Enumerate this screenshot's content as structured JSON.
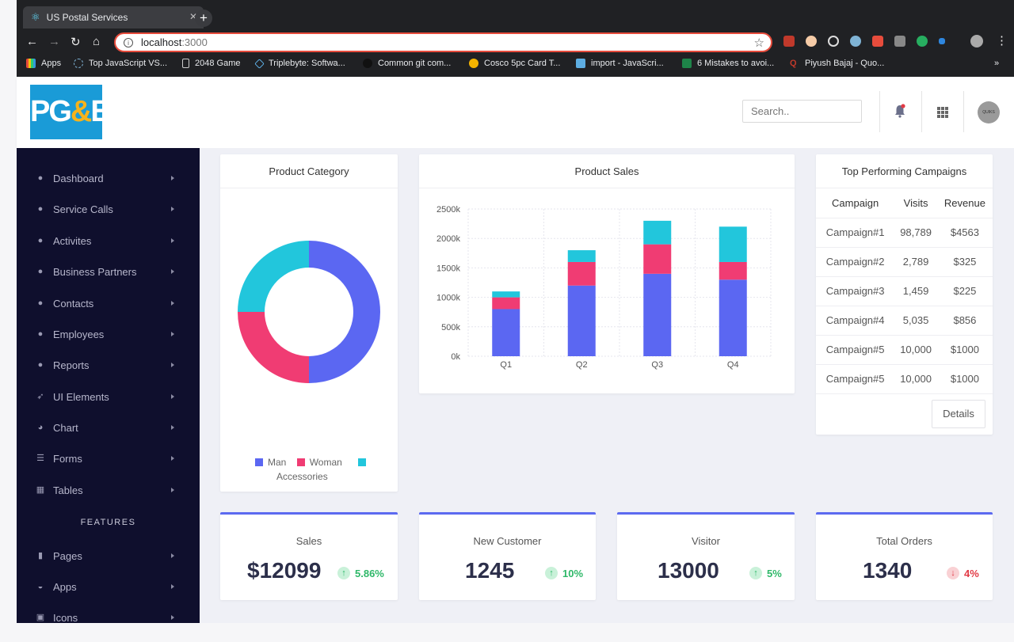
{
  "browser": {
    "tab_title": "US Postal Services",
    "url_host": "localhost",
    "url_port": ":3000",
    "bookmarks": [
      "Apps",
      "Top JavaScript VS...",
      "2048 Game",
      "Triplebyte: Softwa...",
      "Common git com...",
      "Cosco 5pc Card T...",
      "import - JavaScri...",
      "6 Mistakes to avoi...",
      "Piyush Bajaj - Quo..."
    ],
    "more": "»"
  },
  "header": {
    "logo_text_a": "PG",
    "logo_amp": "&",
    "logo_text_b": "E",
    "search_placeholder": "Search..",
    "avatar_text": "QUIKS"
  },
  "sidebar": {
    "items": [
      {
        "label": "Dashboard",
        "icon": "user-circle-icon"
      },
      {
        "label": "Service Calls",
        "icon": "user-circle-icon"
      },
      {
        "label": "Activites",
        "icon": "user-circle-icon"
      },
      {
        "label": "Business Partners",
        "icon": "user-circle-icon"
      },
      {
        "label": "Contacts",
        "icon": "user-circle-icon"
      },
      {
        "label": "Employees",
        "icon": "user-circle-icon"
      },
      {
        "label": "Reports",
        "icon": "user-circle-icon"
      },
      {
        "label": "UI Elements",
        "icon": "rocket-icon"
      },
      {
        "label": "Chart",
        "icon": "pie-chart-icon"
      },
      {
        "label": "Forms",
        "icon": "form-icon"
      },
      {
        "label": "Tables",
        "icon": "table-icon"
      }
    ],
    "section_title": "FEATURES",
    "features": [
      {
        "label": "Pages",
        "icon": "file-icon"
      },
      {
        "label": "Apps",
        "icon": "inbox-icon"
      },
      {
        "label": "Icons",
        "icon": "layout-icon"
      }
    ]
  },
  "product_category": {
    "title": "Product Category",
    "legend": [
      {
        "label": "Man",
        "color": "#5b67f2"
      },
      {
        "label": "Woman",
        "color": "#f03c73"
      },
      {
        "label": "Accessories",
        "color": "#22c6dc"
      }
    ]
  },
  "product_sales": {
    "title": "Product Sales"
  },
  "campaigns": {
    "title": "Top Performing Campaigns",
    "columns": [
      "Campaign",
      "Visits",
      "Revenue"
    ],
    "rows": [
      [
        "Campaign#1",
        "98,789",
        "$4563"
      ],
      [
        "Campaign#2",
        "2,789",
        "$325"
      ],
      [
        "Campaign#3",
        "1,459",
        "$225"
      ],
      [
        "Campaign#4",
        "5,035",
        "$856"
      ],
      [
        "Campaign#5",
        "10,000",
        "$1000"
      ],
      [
        "Campaign#5",
        "10,000",
        "$1000"
      ]
    ],
    "details_label": "Details"
  },
  "stats": [
    {
      "title": "Sales",
      "value": "$12099",
      "change": "5.86%",
      "direction": "up"
    },
    {
      "title": "New Customer",
      "value": "1245",
      "change": "10%",
      "direction": "up"
    },
    {
      "title": "Visitor",
      "value": "13000",
      "change": "5%",
      "direction": "up"
    },
    {
      "title": "Total Orders",
      "value": "1340",
      "change": "4%",
      "direction": "down"
    }
  ],
  "chart_data": [
    {
      "type": "pie",
      "title": "Product Category",
      "categories": [
        "Man",
        "Woman",
        "Accessories"
      ],
      "values": [
        50,
        25,
        25
      ],
      "colors": [
        "#5b67f2",
        "#f03c73",
        "#22c6dc"
      ],
      "donut": true,
      "legend": "bottom"
    },
    {
      "type": "bar",
      "stacked": true,
      "title": "Product Sales",
      "categories": [
        "Q1",
        "Q2",
        "Q3",
        "Q4"
      ],
      "series": [
        {
          "values": [
            800,
            1200,
            1400,
            1300
          ],
          "color": "#5b67f2"
        },
        {
          "values": [
            200,
            400,
            500,
            300
          ],
          "color": "#f03c73"
        },
        {
          "values": [
            100,
            200,
            400,
            600
          ],
          "color": "#22c6dc"
        }
      ],
      "yticks": [
        "0k",
        "500k",
        "1000k",
        "1500k",
        "2000k",
        "2500k"
      ],
      "ylim": [
        0,
        2500
      ],
      "grid": true
    }
  ]
}
